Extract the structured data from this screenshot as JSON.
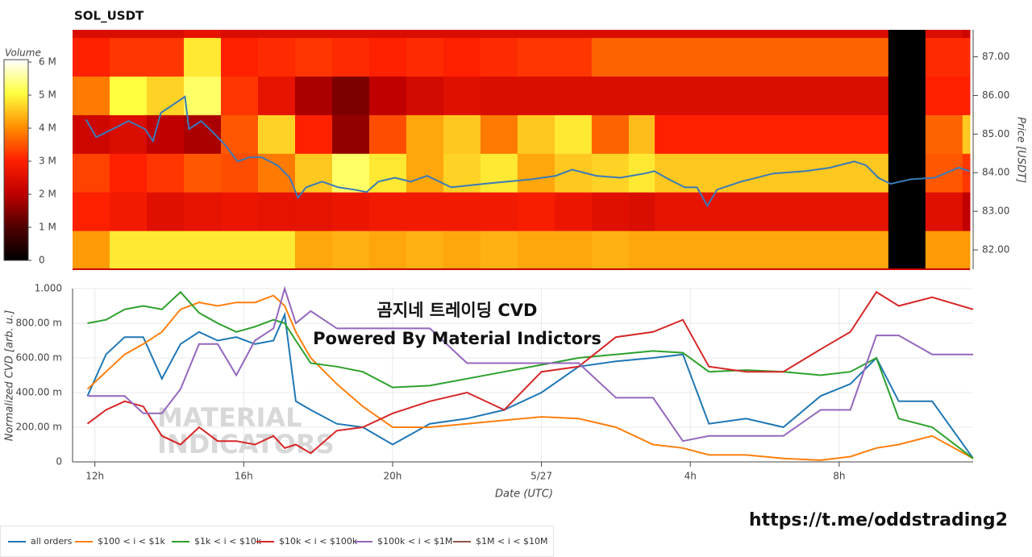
{
  "chart_data": [
    {
      "type": "heatmap",
      "title": "SOL_USDT",
      "y_label": "Price [USDT]",
      "colorbar_label": "Volume",
      "xlim": [
        11.4,
        35.6
      ],
      "ylim": [
        81.5,
        87.7
      ],
      "yticks": [
        {
          "value": 82,
          "label": "82.00"
        },
        {
          "value": 83,
          "label": "83.00"
        },
        {
          "value": 84,
          "label": "84.00"
        },
        {
          "value": 85,
          "label": "85.00"
        },
        {
          "value": 86,
          "label": "86.00"
        },
        {
          "value": 87,
          "label": "87.00"
        }
      ],
      "clim": [
        0,
        6000000
      ],
      "cticks": [
        0,
        {
          "value": 1000000,
          "label": "1 M"
        },
        {
          "value": 2000000,
          "label": "2 M"
        },
        {
          "value": 3000000,
          "label": "3 M"
        },
        {
          "value": 4000000,
          "label": "4 M"
        },
        {
          "value": 5000000,
          "label": "5 M"
        },
        {
          "value": 6000000,
          "label": "6 M"
        }
      ],
      "colorscale": [
        "#000000",
        "#500000",
        "#c00000",
        "#ff2000",
        "#ff9000",
        "#ffff40",
        "#ffffff"
      ],
      "x_edges": [
        11.4,
        12.4,
        13.4,
        14.4,
        15.4,
        16.4,
        17.4,
        18.4,
        19.4,
        20.4,
        21.4,
        22.4,
        23.4,
        24.4,
        25.4,
        26.4,
        27.1,
        33.4,
        34.4,
        35.4,
        35.6
      ],
      "y_edges": [
        81.5,
        82.5,
        83.5,
        84.5,
        85.5,
        86.5,
        87.5,
        87.7
      ],
      "z": [
        [
          4100000,
          4800000,
          4800000,
          4800000,
          4800000,
          4800000,
          4200000,
          4300000,
          4200000,
          4300000,
          4200000,
          4300000,
          4200000,
          4200000,
          4300000,
          4200000,
          4200000,
          0,
          4100000,
          4100000
        ],
        [
          3000000,
          2800000,
          2500000,
          2600000,
          2700000,
          2600000,
          2600000,
          2700000,
          2800000,
          2800000,
          2800000,
          2800000,
          2900000,
          2700000,
          2500000,
          2400000,
          2600000,
          0,
          2500000,
          2000000
        ],
        [
          3300000,
          3000000,
          3200000,
          3500000,
          3400000,
          3800000,
          4500000,
          5200000,
          4800000,
          4200000,
          4600000,
          4800000,
          4200000,
          4500000,
          4600000,
          4800000,
          4500000,
          0,
          3500000,
          3200000
        ],
        [
          2200000,
          2400000,
          2000000,
          1800000,
          3500000,
          4600000,
          3000000,
          1600000,
          3400000,
          4200000,
          4500000,
          3800000,
          4500000,
          4800000,
          3600000,
          4400000,
          3000000,
          0,
          3600000,
          4500000
        ],
        [
          3800000,
          5000000,
          4600000,
          5200000,
          3200000,
          2600000,
          1800000,
          1400000,
          2000000,
          2300000,
          2500000,
          2400000,
          2400000,
          2400000,
          2400000,
          2400000,
          2400000,
          0,
          3000000,
          3000000
        ],
        [
          3000000,
          3200000,
          3200000,
          4800000,
          3000000,
          3100000,
          3200000,
          3100000,
          3000000,
          3100000,
          3000000,
          3100000,
          3200000,
          3200000,
          3600000,
          3600000,
          3600000,
          0,
          3100000,
          3100000
        ],
        [
          2400000,
          2400000,
          2400000,
          2600000,
          2400000,
          2400000,
          2400000,
          2400000,
          2400000,
          2400000,
          2400000,
          2400000,
          2400000,
          2400000,
          2400000,
          2400000,
          2400000,
          0,
          2400000,
          2200000
        ]
      ],
      "price_line": {
        "color": "#3a7ab8",
        "x": [
          11.76,
          12.04,
          12.48,
          12.91,
          13.35,
          13.57,
          13.78,
          14.11,
          14.43,
          14.54,
          14.87,
          15.2,
          15.52,
          15.85,
          16.17,
          16.5,
          16.93,
          17.26,
          17.48,
          17.7,
          18.13,
          18.57,
          19.0,
          19.33,
          19.65,
          20.09,
          20.52,
          20.96,
          21.61,
          22.48,
          23.13,
          23.78,
          24.43,
          24.87,
          25.52,
          26.17,
          26.83,
          27.09,
          27.48,
          27.91,
          28.24,
          28.52,
          28.78,
          29.43,
          30.3,
          31.17,
          31.83,
          32.48,
          32.8,
          33.13,
          33.46,
          34.0,
          34.65,
          35.3,
          35.59
        ],
        "values": [
          85.38,
          84.92,
          85.13,
          85.34,
          85.13,
          84.82,
          85.55,
          85.76,
          85.97,
          85.13,
          85.34,
          85.03,
          84.71,
          84.29,
          84.4,
          84.4,
          84.19,
          83.87,
          83.35,
          83.62,
          83.77,
          83.62,
          83.56,
          83.5,
          83.77,
          83.87,
          83.77,
          83.92,
          83.62,
          83.71,
          83.77,
          83.83,
          83.92,
          84.08,
          83.92,
          83.87,
          83.98,
          84.04,
          83.83,
          83.62,
          83.62,
          83.14,
          83.56,
          83.77,
          83.98,
          84.04,
          84.13,
          84.29,
          84.19,
          83.87,
          83.71,
          83.83,
          83.87,
          84.13,
          84.04
        ]
      }
    },
    {
      "type": "line",
      "x_label": "Date (UTC)",
      "y_label": "Normalized CVD [arb. u.]",
      "grid": true,
      "xlim": [
        11.4,
        35.6
      ],
      "ylim": [
        0,
        1
      ],
      "xticks": [
        {
          "value": 12,
          "label": "12h"
        },
        {
          "value": 16,
          "label": "16h"
        },
        {
          "value": 20,
          "label": "20h"
        },
        {
          "value": 24,
          "label": "5/27"
        },
        {
          "value": 28,
          "label": "4h"
        },
        {
          "value": 32,
          "label": "8h"
        }
      ],
      "yticks": [
        0,
        {
          "value": 0.2,
          "label": "200.00 m"
        },
        {
          "value": 0.4,
          "label": "400.00 m"
        },
        {
          "value": 0.6,
          "label": "600.00 m"
        },
        {
          "value": 0.8,
          "label": "800.00 m"
        },
        {
          "value": 1,
          "label": "1.000"
        }
      ],
      "annotations": [
        "곰지네 트레이딩 CVD",
        "Powered By Material Indictors"
      ],
      "watermark": [
        "MATERIAL",
        "INDICATORS"
      ],
      "x": [
        11.8,
        12.3,
        12.8,
        13.3,
        13.8,
        14.3,
        14.8,
        15.3,
        15.8,
        16.3,
        16.8,
        17.1,
        17.4,
        17.8,
        18.5,
        19.2,
        20,
        21,
        22,
        23,
        24,
        25,
        26,
        27,
        27.8,
        28.5,
        29.5,
        30.5,
        31.5,
        32.3,
        33,
        33.6,
        34.5,
        35.6
      ],
      "series": [
        {
          "name": "all orders",
          "color": "#1f77b4",
          "values": [
            0.38,
            0.62,
            0.72,
            0.72,
            0.48,
            0.68,
            0.75,
            0.7,
            0.72,
            0.68,
            0.7,
            0.85,
            0.35,
            0.3,
            0.22,
            0.2,
            0.1,
            0.22,
            0.25,
            0.3,
            0.4,
            0.55,
            0.58,
            0.6,
            0.62,
            0.22,
            0.25,
            0.2,
            0.38,
            0.45,
            0.6,
            0.35,
            0.35,
            0.02
          ]
        },
        {
          "name": "$100 < i < $1k",
          "color": "#ff7f0e",
          "values": [
            0.42,
            0.52,
            0.62,
            0.68,
            0.75,
            0.88,
            0.92,
            0.9,
            0.92,
            0.92,
            0.96,
            0.9,
            0.75,
            0.6,
            0.45,
            0.32,
            0.2,
            0.2,
            0.22,
            0.24,
            0.26,
            0.25,
            0.2,
            0.1,
            0.08,
            0.04,
            0.04,
            0.02,
            0.01,
            0.03,
            0.08,
            0.1,
            0.15,
            0.02
          ]
        },
        {
          "name": "$1k < i < $10k",
          "color": "#2ca02c",
          "values": [
            0.8,
            0.82,
            0.88,
            0.9,
            0.88,
            0.98,
            0.86,
            0.8,
            0.75,
            0.78,
            0.82,
            0.8,
            0.7,
            0.57,
            0.55,
            0.52,
            0.43,
            0.44,
            0.48,
            0.52,
            0.56,
            0.6,
            0.62,
            0.64,
            0.63,
            0.52,
            0.53,
            0.52,
            0.5,
            0.52,
            0.6,
            0.25,
            0.2,
            0.02
          ]
        },
        {
          "name": "$10k < i < $100k",
          "color": "#d62728",
          "values": [
            0.22,
            0.3,
            0.35,
            0.32,
            0.15,
            0.1,
            0.2,
            0.12,
            0.12,
            0.1,
            0.15,
            0.08,
            0.1,
            0.05,
            0.18,
            0.2,
            0.28,
            0.35,
            0.4,
            0.3,
            0.52,
            0.55,
            0.72,
            0.75,
            0.82,
            0.55,
            0.52,
            0.52,
            0.65,
            0.75,
            0.98,
            0.9,
            0.95,
            0.88
          ]
        },
        {
          "name": "$100k < i < $1M",
          "color": "#9467bd",
          "values": [
            0.38,
            0.38,
            0.38,
            0.28,
            0.28,
            0.42,
            0.68,
            0.68,
            0.5,
            0.7,
            0.77,
            1.0,
            0.8,
            0.87,
            0.77,
            0.77,
            0.77,
            0.77,
            0.57,
            0.57,
            0.57,
            0.57,
            0.37,
            0.37,
            0.12,
            0.15,
            0.15,
            0.15,
            0.3,
            0.3,
            0.73,
            0.73,
            0.62,
            0.62
          ]
        },
        {
          "name": "$1M < i < $10M",
          "color": "#8c564b",
          "values": [
            null,
            null,
            null,
            null,
            null,
            null,
            null,
            null,
            null,
            null,
            null,
            null,
            null,
            null,
            null,
            null,
            null,
            null,
            null,
            null,
            null,
            null,
            null,
            null,
            null,
            null,
            null,
            null,
            null,
            null,
            null,
            null,
            null,
            null
          ]
        }
      ]
    }
  ],
  "footer": "https://t.me/oddstrading2"
}
